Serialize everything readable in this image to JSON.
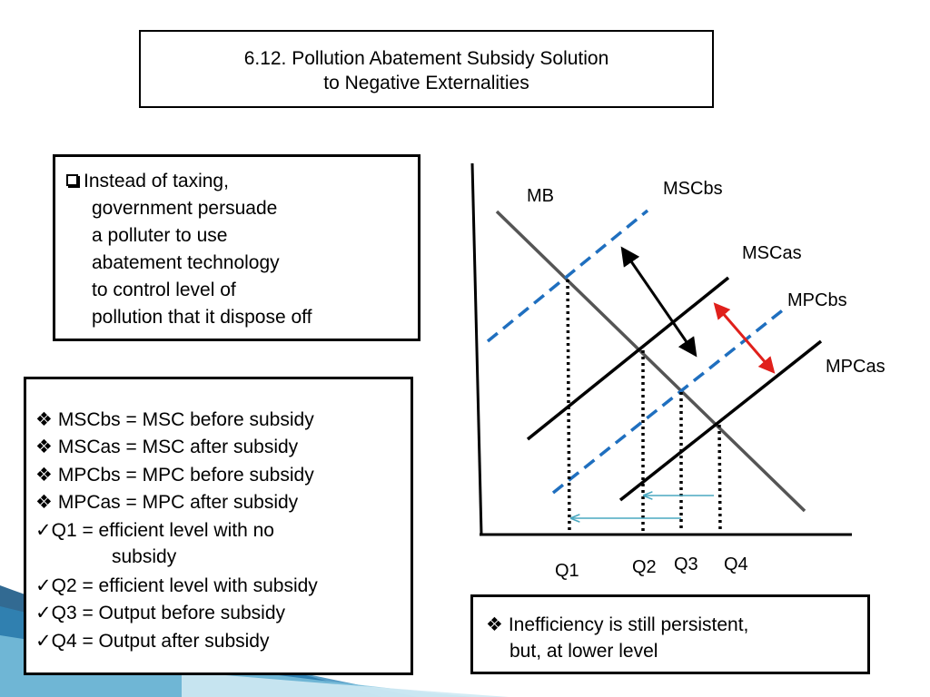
{
  "title": {
    "line1": "6.12. Pollution Abatement Subsidy Solution",
    "line2": "to Negative Externalities"
  },
  "intro": {
    "bullet_icon": "checkbox-square-icon",
    "lines": [
      "Instead of taxing,",
      "government persuade",
      "a polluter to use",
      "abatement technology",
      "to control level of",
      "pollution that it dispose off"
    ]
  },
  "legend": {
    "items": [
      {
        "icon": "diamond-bullet-icon",
        "glyph": "❖",
        "text": "MSCbs = MSC before subsidy"
      },
      {
        "icon": "diamond-bullet-icon",
        "glyph": "❖",
        "text": "MSCas  = MSC after subsidy"
      },
      {
        "icon": "diamond-bullet-icon",
        "glyph": "❖",
        "text": "MPCbs   = MPC before subsidy"
      },
      {
        "icon": "diamond-bullet-icon",
        "glyph": "❖",
        "text": "MPCas   = MPC after subsidy"
      },
      {
        "icon": "check-icon",
        "glyph": "✓",
        "text": "Q1 = efficient level with no"
      },
      {
        "icon": "",
        "glyph": "",
        "text": "subsidy"
      },
      {
        "icon": "check-icon",
        "glyph": "✓",
        "text": "Q2 = efficient level with subsidy"
      },
      {
        "icon": "check-icon",
        "glyph": "✓",
        "text": "Q3 = Output before subsidy"
      },
      {
        "icon": "check-icon",
        "glyph": "✓",
        "text": "Q4 = Output after subsidy"
      }
    ]
  },
  "note": {
    "icon": "diamond-bullet-icon",
    "glyph": "❖",
    "line1": "Inefficiency is still persistent,",
    "line2": "but,  at lower level"
  },
  "diagram": {
    "curve_labels": {
      "mb": "MB",
      "mscbs": "MSCbs",
      "mscas": "MSCas",
      "mpcbs": "MPCbs",
      "mpcas": "MPCas"
    },
    "quantity_labels": {
      "q1": "Q1",
      "q2": "Q2",
      "q3": "Q3",
      "q4": "Q4"
    },
    "colors": {
      "mb": "#555555",
      "dashed": "#1f6fbf",
      "solid": "#000000",
      "red_arrow": "#e0201b",
      "shift_arrow": "#4aa8c0"
    }
  }
}
